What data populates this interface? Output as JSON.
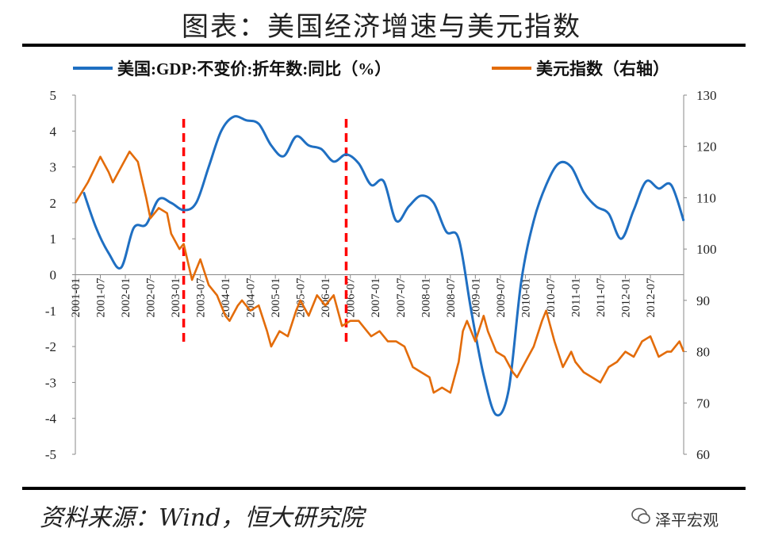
{
  "header": {
    "title": "图表：美国经济增速与美元指数"
  },
  "footer": {
    "source": "资料来源：Wind，恒大研究院",
    "watermark": "泽平宏观",
    "watermark_icon": "wechat-icon"
  },
  "chart_data": {
    "type": "line",
    "title": "图表：美国经济增速与美元指数",
    "legend_position": "top",
    "x_ticks": [
      "2001-01",
      "2001-07",
      "2002-01",
      "2002-07",
      "2003-01",
      "2003-07",
      "2004-01",
      "2004-07",
      "2005-01",
      "2005-07",
      "2006-01",
      "2006-07",
      "2007-01",
      "2007-07",
      "2008-01",
      "2008-07",
      "2009-01",
      "2009-07",
      "2010-01",
      "2010-07",
      "2011-01",
      "2011-07",
      "2012-01",
      "2012-07"
    ],
    "x_range": [
      "2001-01",
      "2013-03"
    ],
    "left_axis": {
      "range": [
        -5,
        5
      ],
      "ticks": [
        5,
        4,
        3,
        2,
        1,
        0,
        -1,
        -2,
        -3,
        -4,
        -5
      ]
    },
    "right_axis": {
      "range": [
        60,
        130
      ],
      "ticks": [
        130,
        120,
        110,
        100,
        90,
        80,
        70,
        60
      ]
    },
    "vlines": [
      {
        "x": "2003-03",
        "color": "#ff0000"
      },
      {
        "x": "2006-06",
        "color": "#ff0000"
      }
    ],
    "series": [
      {
        "name": "美国:GDP:不变价:折年数:同比（%）",
        "axis": "left",
        "color": "#1f6fc2",
        "points": [
          [
            "2001-03",
            2.3
          ],
          [
            "2001-06",
            1.3
          ],
          [
            "2001-09",
            0.6
          ],
          [
            "2001-12",
            0.2
          ],
          [
            "2002-03",
            1.3
          ],
          [
            "2002-06",
            1.4
          ],
          [
            "2002-09",
            2.1
          ],
          [
            "2002-12",
            2.0
          ],
          [
            "2003-03",
            1.8
          ],
          [
            "2003-06",
            2.0
          ],
          [
            "2003-09",
            3.0
          ],
          [
            "2003-12",
            4.0
          ],
          [
            "2004-03",
            4.4
          ],
          [
            "2004-06",
            4.3
          ],
          [
            "2004-09",
            4.2
          ],
          [
            "2004-12",
            3.6
          ],
          [
            "2005-03",
            3.3
          ],
          [
            "2005-06",
            3.85
          ],
          [
            "2005-09",
            3.6
          ],
          [
            "2005-12",
            3.5
          ],
          [
            "2006-03",
            3.15
          ],
          [
            "2006-06",
            3.35
          ],
          [
            "2006-09",
            3.1
          ],
          [
            "2006-12",
            2.5
          ],
          [
            "2007-03",
            2.6
          ],
          [
            "2007-06",
            1.5
          ],
          [
            "2007-09",
            1.9
          ],
          [
            "2007-12",
            2.2
          ],
          [
            "2008-03",
            2.0
          ],
          [
            "2008-06",
            1.2
          ],
          [
            "2008-09",
            1.0
          ],
          [
            "2008-12",
            -1.0
          ],
          [
            "2009-03",
            -2.8
          ],
          [
            "2009-06",
            -3.9
          ],
          [
            "2009-09",
            -3.2
          ],
          [
            "2009-12",
            -0.2
          ],
          [
            "2010-03",
            1.5
          ],
          [
            "2010-06",
            2.5
          ],
          [
            "2010-09",
            3.1
          ],
          [
            "2010-12",
            3.0
          ],
          [
            "2011-03",
            2.3
          ],
          [
            "2011-06",
            1.9
          ],
          [
            "2011-09",
            1.7
          ],
          [
            "2011-12",
            1.0
          ],
          [
            "2012-03",
            1.8
          ],
          [
            "2012-06",
            2.6
          ],
          [
            "2012-09",
            2.4
          ],
          [
            "2012-12",
            2.5
          ],
          [
            "2013-03",
            1.5
          ]
        ]
      },
      {
        "name": "美元指数（右轴）",
        "axis": "right",
        "color": "#e36c0a",
        "points": [
          [
            "2001-01",
            109
          ],
          [
            "2001-04",
            113
          ],
          [
            "2001-07",
            118
          ],
          [
            "2001-09",
            115
          ],
          [
            "2001-10",
            113
          ],
          [
            "2001-12",
            116
          ],
          [
            "2002-02",
            119
          ],
          [
            "2002-04",
            117
          ],
          [
            "2002-06",
            110
          ],
          [
            "2002-07",
            106
          ],
          [
            "2002-09",
            108
          ],
          [
            "2002-11",
            107
          ],
          [
            "2002-12",
            103
          ],
          [
            "2003-02",
            100
          ],
          [
            "2003-03",
            101
          ],
          [
            "2003-05",
            94
          ],
          [
            "2003-07",
            98
          ],
          [
            "2003-09",
            93
          ],
          [
            "2003-11",
            91
          ],
          [
            "2004-01",
            87
          ],
          [
            "2004-02",
            86
          ],
          [
            "2004-04",
            89
          ],
          [
            "2004-05",
            90
          ],
          [
            "2004-07",
            88
          ],
          [
            "2004-09",
            89
          ],
          [
            "2004-11",
            84
          ],
          [
            "2004-12",
            81
          ],
          [
            "2005-02",
            84
          ],
          [
            "2005-04",
            83
          ],
          [
            "2005-06",
            88
          ],
          [
            "2005-07",
            90
          ],
          [
            "2005-09",
            87
          ],
          [
            "2005-11",
            91
          ],
          [
            "2006-01",
            89
          ],
          [
            "2006-03",
            91
          ],
          [
            "2006-05",
            85
          ],
          [
            "2006-07",
            86
          ],
          [
            "2006-09",
            86
          ],
          [
            "2006-11",
            84
          ],
          [
            "2006-12",
            83
          ],
          [
            "2007-02",
            84
          ],
          [
            "2007-04",
            82
          ],
          [
            "2007-06",
            82
          ],
          [
            "2007-08",
            81
          ],
          [
            "2007-10",
            77
          ],
          [
            "2007-12",
            76
          ],
          [
            "2008-02",
            75
          ],
          [
            "2008-03",
            72
          ],
          [
            "2008-05",
            73
          ],
          [
            "2008-07",
            72
          ],
          [
            "2008-09",
            78
          ],
          [
            "2008-10",
            84
          ],
          [
            "2008-11",
            86
          ],
          [
            "2009-01",
            82
          ],
          [
            "2009-03",
            87
          ],
          [
            "2009-04",
            84
          ],
          [
            "2009-06",
            80
          ],
          [
            "2009-08",
            79
          ],
          [
            "2009-10",
            76
          ],
          [
            "2009-11",
            75
          ],
          [
            "2010-01",
            78
          ],
          [
            "2010-03",
            81
          ],
          [
            "2010-05",
            86
          ],
          [
            "2010-06",
            88
          ],
          [
            "2010-08",
            82
          ],
          [
            "2010-10",
            77
          ],
          [
            "2010-12",
            80
          ],
          [
            "2011-01",
            78
          ],
          [
            "2011-03",
            76
          ],
          [
            "2011-05",
            75
          ],
          [
            "2011-07",
            74
          ],
          [
            "2011-09",
            77
          ],
          [
            "2011-11",
            78
          ],
          [
            "2012-01",
            80
          ],
          [
            "2012-03",
            79
          ],
          [
            "2012-05",
            82
          ],
          [
            "2012-07",
            83
          ],
          [
            "2012-09",
            79
          ],
          [
            "2012-11",
            80
          ],
          [
            "2012-12",
            80
          ],
          [
            "2013-02",
            82
          ],
          [
            "2013-03",
            80
          ]
        ]
      }
    ]
  }
}
